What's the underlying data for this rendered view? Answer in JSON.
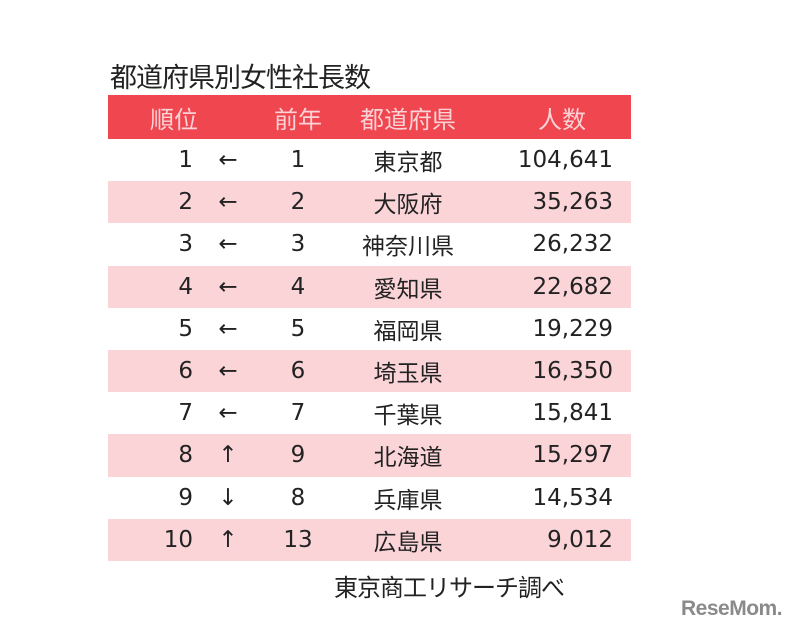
{
  "title": "都道府県別女性社長数",
  "source": "東京商工リサーチ調べ",
  "logo": "ReseMom",
  "colors": {
    "header_bg": "#ef4650",
    "header_text": "#fbd3d6",
    "alt_row": "#fbd4d8"
  },
  "chart_data": {
    "type": "table",
    "title": "都道府県別女性社長数",
    "columns": [
      "順位",
      "",
      "前年",
      "都道府県",
      "人数"
    ],
    "rows": [
      {
        "rank": "1",
        "change": "←",
        "prev": "1",
        "pref": "東京都",
        "count": "104,641"
      },
      {
        "rank": "2",
        "change": "←",
        "prev": "2",
        "pref": "大阪府",
        "count": "35,263"
      },
      {
        "rank": "3",
        "change": "←",
        "prev": "3",
        "pref": "神奈川県",
        "count": "26,232"
      },
      {
        "rank": "4",
        "change": "←",
        "prev": "4",
        "pref": "愛知県",
        "count": "22,682"
      },
      {
        "rank": "5",
        "change": "←",
        "prev": "5",
        "pref": "福岡県",
        "count": "19,229"
      },
      {
        "rank": "6",
        "change": "←",
        "prev": "6",
        "pref": "埼玉県",
        "count": "16,350"
      },
      {
        "rank": "7",
        "change": "←",
        "prev": "7",
        "pref": "千葉県",
        "count": "15,841"
      },
      {
        "rank": "8",
        "change": "↑",
        "prev": "9",
        "pref": "北海道",
        "count": "15,297"
      },
      {
        "rank": "9",
        "change": "↓",
        "prev": "8",
        "pref": "兵庫県",
        "count": "14,534"
      },
      {
        "rank": "10",
        "change": "↑",
        "prev": "13",
        "pref": "広島県",
        "count": "9,012"
      }
    ]
  }
}
